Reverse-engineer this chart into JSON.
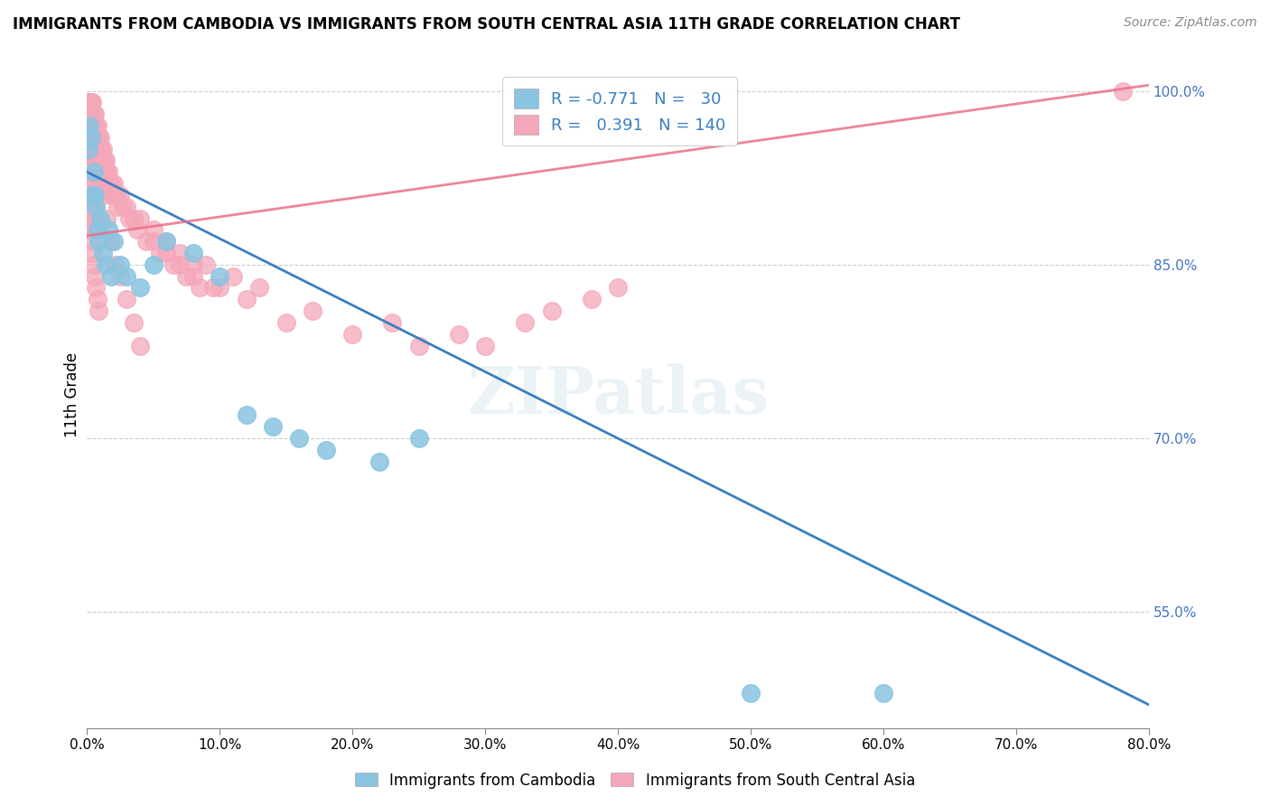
{
  "title": "IMMIGRANTS FROM CAMBODIA VS IMMIGRANTS FROM SOUTH CENTRAL ASIA 11TH GRADE CORRELATION CHART",
  "source": "Source: ZipAtlas.com",
  "ylabel": "11th Grade",
  "ytick_vals": [
    0.55,
    0.7,
    0.85,
    1.0
  ],
  "ytick_labels": [
    "55.0%",
    "70.0%",
    "85.0%",
    "100.0%"
  ],
  "blue_color": "#89C4E1",
  "pink_color": "#F4A7B9",
  "blue_line_color": "#3A7FC1",
  "pink_line_color": "#E8708A",
  "blue_line_x": [
    0.0,
    0.8
  ],
  "blue_line_y": [
    0.93,
    0.47
  ],
  "pink_line_x": [
    0.0,
    0.8
  ],
  "pink_line_y": [
    0.875,
    1.005
  ],
  "cambodia_x": [
    0.001,
    0.002,
    0.003,
    0.004,
    0.005,
    0.006,
    0.007,
    0.008,
    0.009,
    0.01,
    0.012,
    0.014,
    0.016,
    0.018,
    0.02,
    0.025,
    0.03,
    0.04,
    0.05,
    0.06,
    0.08,
    0.1,
    0.12,
    0.14,
    0.16,
    0.18,
    0.22,
    0.25,
    0.5,
    0.6
  ],
  "cambodia_y": [
    0.95,
    0.97,
    0.96,
    0.91,
    0.93,
    0.91,
    0.9,
    0.88,
    0.87,
    0.89,
    0.86,
    0.85,
    0.88,
    0.84,
    0.87,
    0.85,
    0.84,
    0.83,
    0.85,
    0.87,
    0.86,
    0.84,
    0.72,
    0.71,
    0.7,
    0.69,
    0.68,
    0.7,
    0.48,
    0.48
  ],
  "sca_x": [
    0.001,
    0.001,
    0.001,
    0.002,
    0.002,
    0.002,
    0.002,
    0.003,
    0.003,
    0.003,
    0.003,
    0.003,
    0.004,
    0.004,
    0.004,
    0.004,
    0.005,
    0.005,
    0.005,
    0.005,
    0.005,
    0.006,
    0.006,
    0.006,
    0.006,
    0.007,
    0.007,
    0.007,
    0.007,
    0.008,
    0.008,
    0.008,
    0.008,
    0.009,
    0.009,
    0.009,
    0.01,
    0.01,
    0.01,
    0.01,
    0.011,
    0.011,
    0.012,
    0.012,
    0.013,
    0.013,
    0.014,
    0.014,
    0.015,
    0.015,
    0.016,
    0.017,
    0.018,
    0.019,
    0.02,
    0.021,
    0.022,
    0.023,
    0.025,
    0.027,
    0.03,
    0.032,
    0.035,
    0.038,
    0.04,
    0.045,
    0.05,
    0.055,
    0.06,
    0.065,
    0.07,
    0.075,
    0.08,
    0.085,
    0.09,
    0.1,
    0.11,
    0.12,
    0.13,
    0.15,
    0.17,
    0.2,
    0.23,
    0.25,
    0.28,
    0.3,
    0.33,
    0.35,
    0.38,
    0.4,
    0.001,
    0.002,
    0.003,
    0.004,
    0.003,
    0.005,
    0.006,
    0.007,
    0.002,
    0.004,
    0.002,
    0.003,
    0.004,
    0.005,
    0.006,
    0.007,
    0.008,
    0.009,
    0.002,
    0.003,
    0.004,
    0.005,
    0.006,
    0.007,
    0.001,
    0.002,
    0.003,
    0.004,
    0.001,
    0.002,
    0.003,
    0.004,
    0.005,
    0.006,
    0.008,
    0.01,
    0.012,
    0.015,
    0.018,
    0.021,
    0.025,
    0.03,
    0.035,
    0.04,
    0.05,
    0.06,
    0.07,
    0.08,
    0.095,
    0.78
  ],
  "sca_y": [
    0.99,
    0.98,
    0.97,
    0.99,
    0.98,
    0.97,
    0.96,
    0.99,
    0.98,
    0.97,
    0.96,
    0.95,
    0.99,
    0.98,
    0.97,
    0.96,
    0.98,
    0.97,
    0.96,
    0.95,
    0.94,
    0.98,
    0.97,
    0.96,
    0.95,
    0.97,
    0.96,
    0.95,
    0.94,
    0.97,
    0.96,
    0.95,
    0.94,
    0.96,
    0.95,
    0.94,
    0.96,
    0.95,
    0.94,
    0.93,
    0.95,
    0.94,
    0.95,
    0.94,
    0.94,
    0.93,
    0.94,
    0.93,
    0.93,
    0.92,
    0.93,
    0.92,
    0.92,
    0.91,
    0.92,
    0.91,
    0.91,
    0.9,
    0.91,
    0.9,
    0.9,
    0.89,
    0.89,
    0.88,
    0.89,
    0.87,
    0.88,
    0.86,
    0.87,
    0.85,
    0.86,
    0.84,
    0.85,
    0.83,
    0.85,
    0.83,
    0.84,
    0.82,
    0.83,
    0.8,
    0.81,
    0.79,
    0.8,
    0.78,
    0.79,
    0.78,
    0.8,
    0.81,
    0.82,
    0.83,
    0.96,
    0.95,
    0.94,
    0.93,
    0.92,
    0.91,
    0.9,
    0.89,
    0.97,
    0.96,
    0.88,
    0.87,
    0.86,
    0.85,
    0.84,
    0.83,
    0.82,
    0.81,
    0.99,
    0.98,
    0.97,
    0.96,
    0.95,
    0.94,
    0.99,
    0.98,
    0.97,
    0.96,
    0.93,
    0.92,
    0.91,
    0.9,
    0.89,
    0.88,
    0.93,
    0.92,
    0.91,
    0.89,
    0.87,
    0.85,
    0.84,
    0.82,
    0.8,
    0.78,
    0.87,
    0.86,
    0.85,
    0.84,
    0.83,
    1.0
  ],
  "xlim": [
    0.0,
    0.8
  ],
  "ylim": [
    0.45,
    1.025
  ],
  "figsize": [
    14.06,
    8.92
  ],
  "dpi": 100
}
